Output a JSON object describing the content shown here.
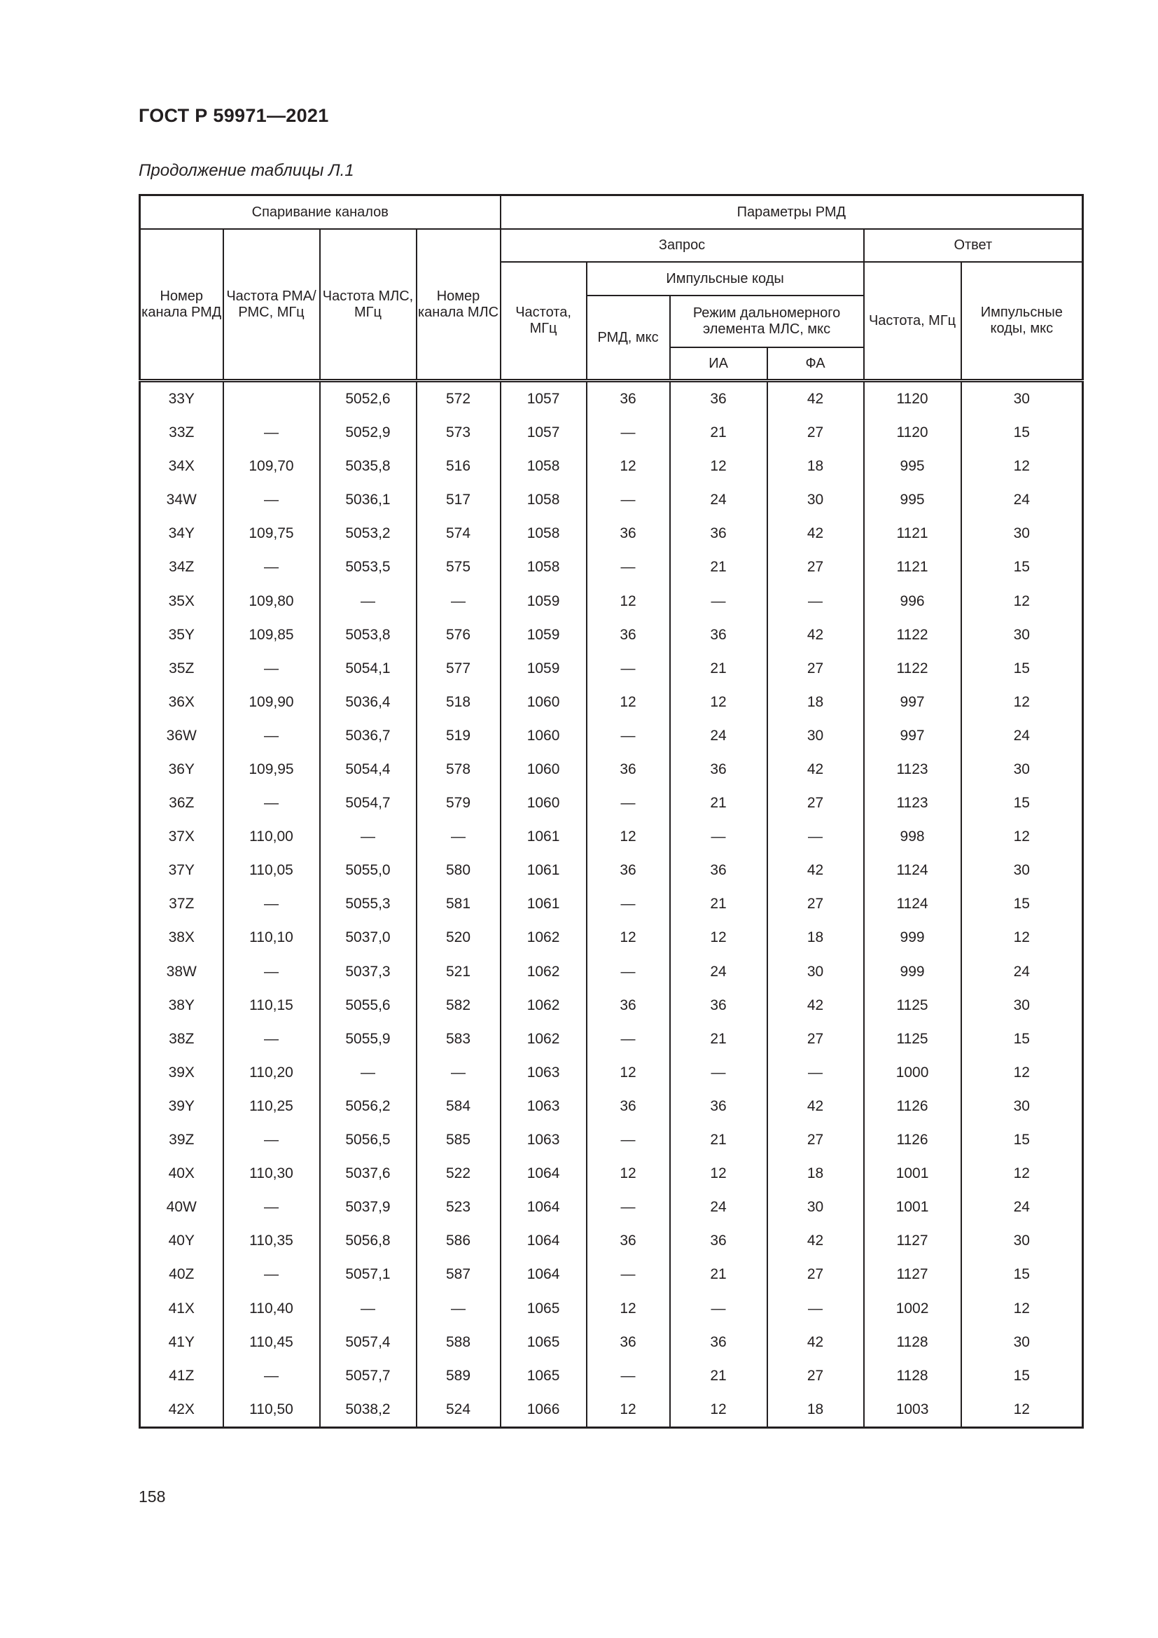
{
  "header": {
    "doc_title": "ГОСТ Р 59971—2021",
    "caption": "Продолжение таблицы Л.1"
  },
  "table": {
    "group_pairing": "Спаривание каналов",
    "group_params": "Параметры РМД",
    "request": "Запрос",
    "response": "Ответ",
    "pulse_codes": "Импульсные коды",
    "col_channel_dme": "Номер канала РМД",
    "col_freq_vor": "Частота РМА/ РМС, МГц",
    "col_freq_mls": "Частота МЛС, МГц",
    "col_channel_mls": "Номер канала МЛС",
    "col_req_freq": "Частота, МГц",
    "col_dme_us": "РМД, мкс",
    "col_mls_mode": "Режим дальномерного элемента МЛС, мкс",
    "col_ia": "ИА",
    "col_fa": "ФА",
    "col_resp_freq": "Частота, МГц",
    "col_resp_codes": "Импульсные коды, мкс",
    "rows": [
      [
        "33Y",
        "",
        "5052,6",
        "572",
        "1057",
        "36",
        "36",
        "42",
        "1120",
        "30"
      ],
      [
        "33Z",
        "—",
        "5052,9",
        "573",
        "1057",
        "—",
        "21",
        "27",
        "1120",
        "15"
      ],
      [
        "34X",
        "109,70",
        "5035,8",
        "516",
        "1058",
        "12",
        "12",
        "18",
        "995",
        "12"
      ],
      [
        "34W",
        "—",
        "5036,1",
        "517",
        "1058",
        "—",
        "24",
        "30",
        "995",
        "24"
      ],
      [
        "34Y",
        "109,75",
        "5053,2",
        "574",
        "1058",
        "36",
        "36",
        "42",
        "1121",
        "30"
      ],
      [
        "34Z",
        "—",
        "5053,5",
        "575",
        "1058",
        "—",
        "21",
        "27",
        "1121",
        "15"
      ],
      [
        "35X",
        "109,80",
        "—",
        "—",
        "1059",
        "12",
        "—",
        "—",
        "996",
        "12"
      ],
      [
        "35Y",
        "109,85",
        "5053,8",
        "576",
        "1059",
        "36",
        "36",
        "42",
        "1122",
        "30"
      ],
      [
        "35Z",
        "—",
        "5054,1",
        "577",
        "1059",
        "—",
        "21",
        "27",
        "1122",
        "15"
      ],
      [
        "36X",
        "109,90",
        "5036,4",
        "518",
        "1060",
        "12",
        "12",
        "18",
        "997",
        "12"
      ],
      [
        "36W",
        "—",
        "5036,7",
        "519",
        "1060",
        "—",
        "24",
        "30",
        "997",
        "24"
      ],
      [
        "36Y",
        "109,95",
        "5054,4",
        "578",
        "1060",
        "36",
        "36",
        "42",
        "1123",
        "30"
      ],
      [
        "36Z",
        "—",
        "5054,7",
        "579",
        "1060",
        "—",
        "21",
        "27",
        "1123",
        "15"
      ],
      [
        "37X",
        "110,00",
        "—",
        "—",
        "1061",
        "12",
        "—",
        "—",
        "998",
        "12"
      ],
      [
        "37Y",
        "110,05",
        "5055,0",
        "580",
        "1061",
        "36",
        "36",
        "42",
        "1124",
        "30"
      ],
      [
        "37Z",
        "—",
        "5055,3",
        "581",
        "1061",
        "—",
        "21",
        "27",
        "1124",
        "15"
      ],
      [
        "38X",
        "110,10",
        "5037,0",
        "520",
        "1062",
        "12",
        "12",
        "18",
        "999",
        "12"
      ],
      [
        "38W",
        "—",
        "5037,3",
        "521",
        "1062",
        "—",
        "24",
        "30",
        "999",
        "24"
      ],
      [
        "38Y",
        "110,15",
        "5055,6",
        "582",
        "1062",
        "36",
        "36",
        "42",
        "1125",
        "30"
      ],
      [
        "38Z",
        "—",
        "5055,9",
        "583",
        "1062",
        "—",
        "21",
        "27",
        "1125",
        "15"
      ],
      [
        "39X",
        "110,20",
        "—",
        "—",
        "1063",
        "12",
        "—",
        "—",
        "1000",
        "12"
      ],
      [
        "39Y",
        "110,25",
        "5056,2",
        "584",
        "1063",
        "36",
        "36",
        "42",
        "1126",
        "30"
      ],
      [
        "39Z",
        "—",
        "5056,5",
        "585",
        "1063",
        "—",
        "21",
        "27",
        "1126",
        "15"
      ],
      [
        "40X",
        "110,30",
        "5037,6",
        "522",
        "1064",
        "12",
        "12",
        "18",
        "1001",
        "12"
      ],
      [
        "40W",
        "—",
        "5037,9",
        "523",
        "1064",
        "—",
        "24",
        "30",
        "1001",
        "24"
      ],
      [
        "40Y",
        "110,35",
        "5056,8",
        "586",
        "1064",
        "36",
        "36",
        "42",
        "1127",
        "30"
      ],
      [
        "40Z",
        "—",
        "5057,1",
        "587",
        "1064",
        "—",
        "21",
        "27",
        "1127",
        "15"
      ],
      [
        "41X",
        "110,40",
        "—",
        "—",
        "1065",
        "12",
        "—",
        "—",
        "1002",
        "12"
      ],
      [
        "41Y",
        "110,45",
        "5057,4",
        "588",
        "1065",
        "36",
        "36",
        "42",
        "1128",
        "30"
      ],
      [
        "41Z",
        "—",
        "5057,7",
        "589",
        "1065",
        "—",
        "21",
        "27",
        "1128",
        "15"
      ],
      [
        "42X",
        "110,50",
        "5038,2",
        "524",
        "1066",
        "12",
        "12",
        "18",
        "1003",
        "12"
      ]
    ]
  },
  "footer": {
    "page_number": "158"
  }
}
